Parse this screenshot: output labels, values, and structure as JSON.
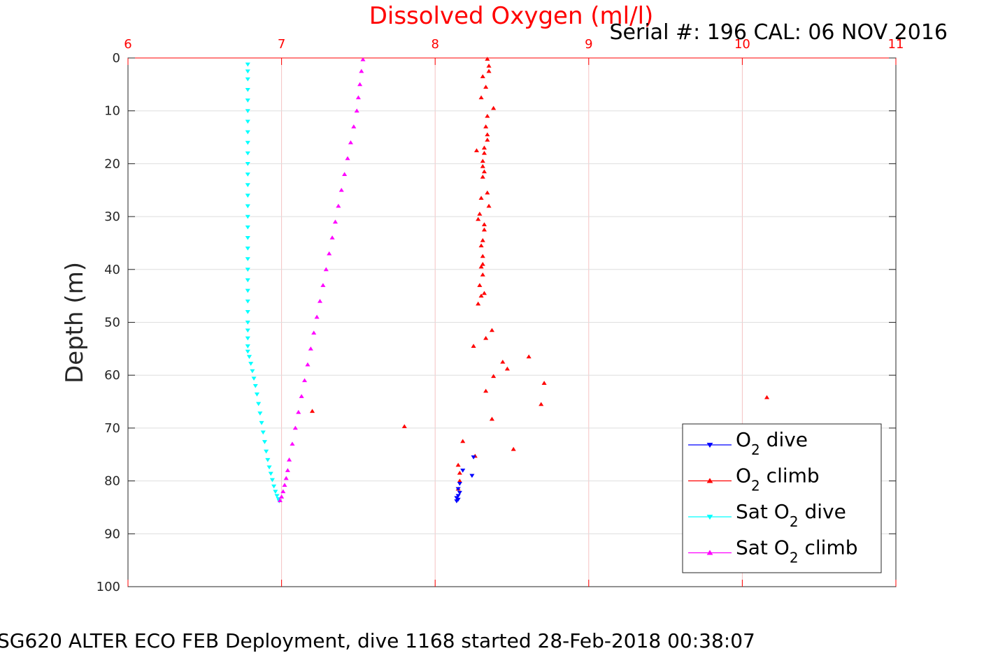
{
  "chart_data": {
    "type": "scatter",
    "title": "Dissolved Oxygen (ml/l)",
    "subtitle": "Serial #: 196  CAL: 06 NOV 2016",
    "caption": "SG620 ALTER ECO FEB Deployment, dive 1168 started 28-Feb-2018 00:38:07",
    "ylabel": "Depth (m)",
    "xlim": [
      6,
      11
    ],
    "ylim": [
      0,
      100
    ],
    "y_reversed": true,
    "x_axis_position": "top",
    "x_ticks": [
      "6",
      "7",
      "8",
      "9",
      "10",
      "11"
    ],
    "y_ticks": [
      "0",
      "10",
      "20",
      "30",
      "40",
      "50",
      "60",
      "70",
      "80",
      "90",
      "100"
    ],
    "grid": true,
    "legend_position": "bottom-right",
    "legend": [
      {
        "main": "O",
        "sub": "2",
        "rest": " dive",
        "color": "#0000ff",
        "marker": "triangle-down"
      },
      {
        "main": "O",
        "sub": "2",
        "rest": " climb",
        "color": "#ff0000",
        "marker": "triangle-up"
      },
      {
        "main": "Sat O",
        "sub": "2",
        "rest": " dive",
        "color": "#00ffff",
        "marker": "triangle-down"
      },
      {
        "main": "Sat O",
        "sub": "2",
        "rest": " climb",
        "color": "#ff00ff",
        "marker": "triangle-up"
      }
    ],
    "series": [
      {
        "name": "O2 dive",
        "color": "#0000ff",
        "marker": "triangle-down",
        "x": [
          8.25,
          8.24,
          8.18,
          8.16,
          8.15,
          8.16,
          8.15,
          8.14,
          8.15,
          8.14
        ],
        "y": [
          75.5,
          79.0,
          78.0,
          80.5,
          81.5,
          82.2,
          82.8,
          83.2,
          83.5,
          83.8
        ]
      },
      {
        "name": "O2 climb",
        "color": "#ff0000",
        "marker": "triangle-up",
        "x": [
          8.34,
          8.35,
          8.35,
          8.31,
          8.33,
          8.3,
          8.38,
          8.34,
          8.33,
          8.34,
          8.34,
          8.32,
          8.27,
          8.32,
          8.31,
          8.31,
          8.32,
          8.31,
          8.34,
          8.3,
          8.35,
          8.29,
          8.28,
          8.32,
          8.32,
          8.31,
          8.3,
          8.31,
          8.31,
          8.3,
          8.31,
          8.29,
          8.32,
          8.3,
          8.28,
          8.37,
          8.33,
          8.25,
          8.61,
          8.44,
          8.47,
          8.38,
          8.71,
          8.33,
          8.69,
          10.16,
          8.37,
          7.2,
          7.8,
          8.51,
          8.18,
          8.26,
          8.15,
          8.16,
          8.16,
          8.15
        ],
        "y": [
          0.2,
          1.5,
          2.5,
          3.5,
          5.5,
          7.5,
          9.5,
          11.0,
          13.0,
          14.5,
          15.5,
          17.0,
          17.5,
          18.0,
          19.5,
          20.5,
          21.5,
          22.5,
          25.5,
          26.5,
          28.0,
          29.5,
          30.5,
          31.5,
          32.5,
          34.5,
          35.5,
          37.5,
          39.0,
          39.5,
          41.0,
          43.0,
          44.5,
          45.0,
          46.5,
          51.5,
          53.0,
          54.5,
          56.5,
          57.5,
          58.8,
          60.2,
          61.5,
          63.0,
          65.5,
          64.2,
          68.3,
          66.8,
          69.7,
          74.0,
          72.5,
          75.3,
          77.0,
          78.5,
          80.0,
          81.5
        ]
      },
      {
        "name": "Sat O2 dive",
        "color": "#00ffff",
        "marker": "triangle-down",
        "x": [
          6.78,
          6.78,
          6.78,
          6.78,
          6.78,
          6.78,
          6.78,
          6.78,
          6.78,
          6.78,
          6.78,
          6.78,
          6.78,
          6.78,
          6.78,
          6.78,
          6.78,
          6.78,
          6.78,
          6.78,
          6.78,
          6.78,
          6.78,
          6.78,
          6.78,
          6.78,
          6.78,
          6.78,
          6.78,
          6.78,
          6.79,
          6.8,
          6.81,
          6.82,
          6.83,
          6.84,
          6.85,
          6.86,
          6.87,
          6.88,
          6.89,
          6.9,
          6.91,
          6.92,
          6.93,
          6.94,
          6.95,
          6.96,
          6.97,
          6.98,
          6.985
        ],
        "y": [
          1.2,
          2.5,
          4,
          6,
          8,
          10,
          12,
          14,
          16,
          18,
          20,
          22,
          24,
          26,
          28,
          30,
          32,
          34,
          36,
          38,
          40,
          42,
          44,
          46,
          48,
          50,
          51.5,
          53,
          54.5,
          55.5,
          56.5,
          57.8,
          59.2,
          60.6,
          62.0,
          63.6,
          65.4,
          67.2,
          69.0,
          70.8,
          72.6,
          74.4,
          76.0,
          77.4,
          78.6,
          79.8,
          81.0,
          82.0,
          82.8,
          83.4,
          83.8
        ]
      },
      {
        "name": "Sat O2 climb",
        "color": "#ff00ff",
        "marker": "triangle-up",
        "x": [
          7.53,
          7.52,
          7.51,
          7.5,
          7.49,
          7.47,
          7.45,
          7.43,
          7.41,
          7.39,
          7.37,
          7.35,
          7.33,
          7.31,
          7.29,
          7.27,
          7.25,
          7.23,
          7.21,
          7.19,
          7.17,
          7.15,
          7.13,
          7.11,
          7.09,
          7.07,
          7.05,
          7.04,
          7.03,
          7.02,
          7.01,
          7.0,
          6.99
        ],
        "y": [
          0.3,
          2.5,
          5,
          7.5,
          10,
          13,
          16,
          19,
          22,
          25,
          28,
          31,
          34,
          37,
          40,
          43,
          46,
          49,
          52,
          55,
          58,
          61,
          64,
          67,
          70,
          73,
          76,
          78,
          79.5,
          80.8,
          82.0,
          83.0,
          83.7
        ]
      }
    ]
  }
}
